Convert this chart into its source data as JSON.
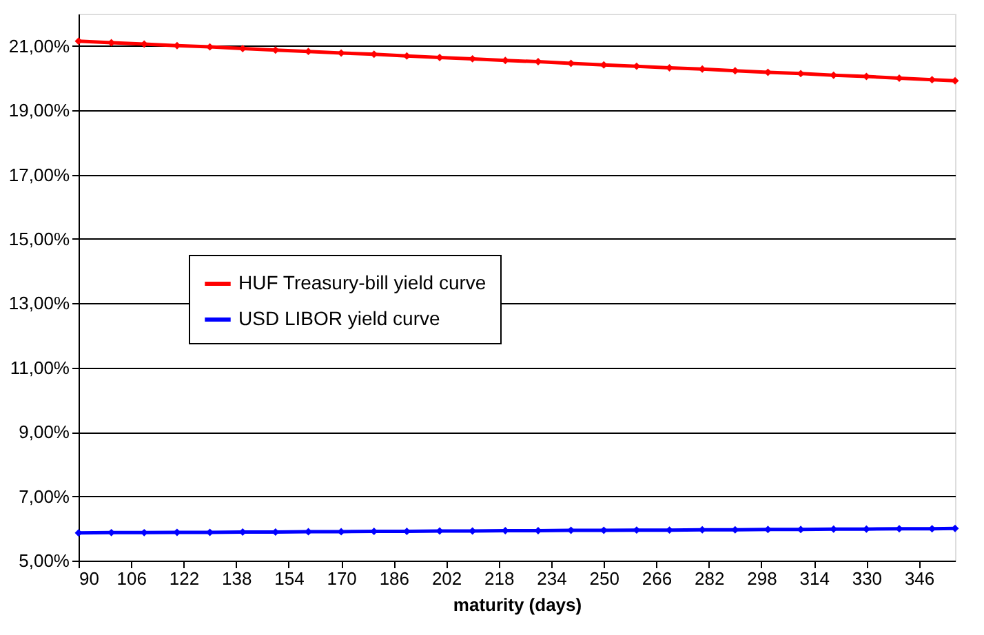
{
  "chart_data": {
    "type": "line",
    "xlabel": "maturity (days)",
    "x": [
      90,
      100,
      110,
      120,
      130,
      140,
      150,
      160,
      170,
      180,
      190,
      200,
      210,
      220,
      230,
      240,
      250,
      260,
      270,
      280,
      290,
      300,
      310,
      320,
      330,
      340,
      350,
      357
    ],
    "series": [
      {
        "name": "HUF Treasury-bill yield curve",
        "color": "#ff0000",
        "values": [
          21.15,
          21.1,
          21.06,
          21.01,
          20.97,
          20.92,
          20.87,
          20.83,
          20.78,
          20.74,
          20.69,
          20.64,
          20.6,
          20.55,
          20.51,
          20.46,
          20.41,
          20.37,
          20.32,
          20.28,
          20.23,
          20.18,
          20.14,
          20.09,
          20.05,
          20.0,
          19.95,
          19.92
        ]
      },
      {
        "name": "USD LIBOR yield curve",
        "color": "#0000ff",
        "values": [
          5.86,
          5.87,
          5.87,
          5.88,
          5.88,
          5.89,
          5.89,
          5.9,
          5.9,
          5.91,
          5.91,
          5.92,
          5.92,
          5.93,
          5.93,
          5.94,
          5.94,
          5.95,
          5.95,
          5.96,
          5.96,
          5.97,
          5.97,
          5.98,
          5.98,
          5.99,
          5.99,
          6.0
        ]
      }
    ],
    "xlim": [
      90,
      357
    ],
    "xticks": [
      90,
      106,
      122,
      138,
      154,
      170,
      186,
      202,
      218,
      234,
      250,
      266,
      282,
      298,
      314,
      330,
      346
    ],
    "ylim": [
      5,
      22
    ],
    "yticks": [
      {
        "value": 5,
        "label": "5,00%"
      },
      {
        "value": 7,
        "label": "7,00%"
      },
      {
        "value": 9,
        "label": "9,00%"
      },
      {
        "value": 11,
        "label": "11,00%"
      },
      {
        "value": 13,
        "label": "13,00%"
      },
      {
        "value": 15,
        "label": "15,00%"
      },
      {
        "value": 17,
        "label": "17,00%"
      },
      {
        "value": 19,
        "label": "19,00%"
      },
      {
        "value": 21,
        "label": "21,00%"
      }
    ],
    "grid": "y",
    "legend": "left",
    "marker": "diamond",
    "line_style": "solid"
  }
}
